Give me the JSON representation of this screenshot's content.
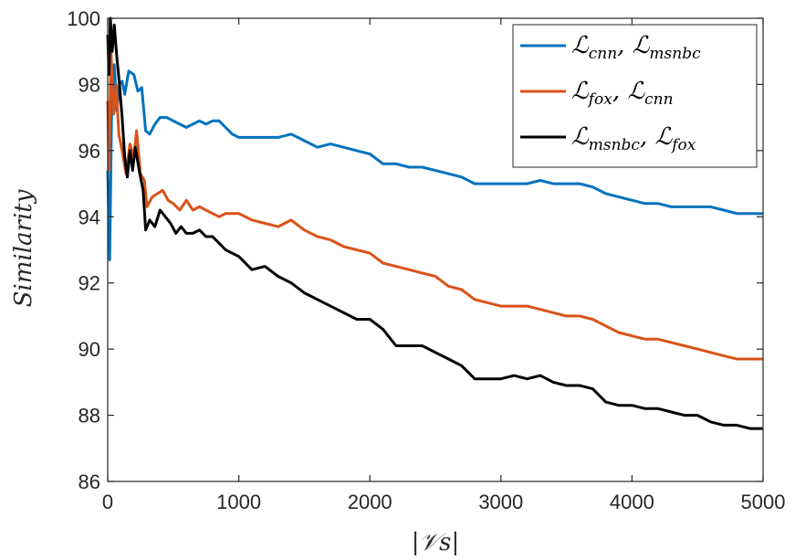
{
  "chart_data": {
    "type": "line",
    "title": "",
    "xlabel": "|𝒱s|",
    "ylabel": "Similarity",
    "xlim": [
      0,
      5000
    ],
    "ylim": [
      86,
      100
    ],
    "xticks": [
      "0",
      "1000",
      "2000",
      "3000",
      "4000",
      "5000"
    ],
    "yticks": [
      "86",
      "88",
      "90",
      "92",
      "94",
      "96",
      "98",
      "100"
    ],
    "grid": false,
    "legend_position": "top-right",
    "series": [
      {
        "name": "ℒcnn, ℒmsnbc",
        "legend": {
          "main1": "ℒ",
          "sub1": "cnn",
          "main2": "ℒ",
          "sub2": "msnbc"
        },
        "color": "#0072BD",
        "points": [
          [
            0,
            95.4
          ],
          [
            15,
            92.7
          ],
          [
            30,
            97.2
          ],
          [
            50,
            98.6
          ],
          [
            70,
            97.2
          ],
          [
            90,
            98.0
          ],
          [
            110,
            98.1
          ],
          [
            130,
            97.7
          ],
          [
            160,
            98.4
          ],
          [
            200,
            98.3
          ],
          [
            230,
            97.8
          ],
          [
            260,
            97.9
          ],
          [
            290,
            96.6
          ],
          [
            320,
            96.5
          ],
          [
            360,
            96.8
          ],
          [
            400,
            97.0
          ],
          [
            450,
            97.0
          ],
          [
            500,
            96.9
          ],
          [
            550,
            96.8
          ],
          [
            600,
            96.7
          ],
          [
            650,
            96.8
          ],
          [
            700,
            96.9
          ],
          [
            750,
            96.8
          ],
          [
            800,
            96.9
          ],
          [
            850,
            96.9
          ],
          [
            900,
            96.7
          ],
          [
            950,
            96.5
          ],
          [
            1000,
            96.4
          ],
          [
            1100,
            96.4
          ],
          [
            1200,
            96.4
          ],
          [
            1300,
            96.4
          ],
          [
            1400,
            96.5
          ],
          [
            1500,
            96.3
          ],
          [
            1600,
            96.1
          ],
          [
            1700,
            96.2
          ],
          [
            1800,
            96.1
          ],
          [
            1900,
            96.0
          ],
          [
            2000,
            95.9
          ],
          [
            2100,
            95.6
          ],
          [
            2200,
            95.6
          ],
          [
            2300,
            95.5
          ],
          [
            2400,
            95.5
          ],
          [
            2500,
            95.4
          ],
          [
            2600,
            95.3
          ],
          [
            2700,
            95.2
          ],
          [
            2800,
            95.0
          ],
          [
            2900,
            95.0
          ],
          [
            3000,
            95.0
          ],
          [
            3100,
            95.0
          ],
          [
            3200,
            95.0
          ],
          [
            3300,
            95.1
          ],
          [
            3400,
            95.0
          ],
          [
            3500,
            95.0
          ],
          [
            3600,
            95.0
          ],
          [
            3700,
            94.9
          ],
          [
            3800,
            94.7
          ],
          [
            3900,
            94.6
          ],
          [
            4000,
            94.5
          ],
          [
            4100,
            94.4
          ],
          [
            4200,
            94.4
          ],
          [
            4300,
            94.3
          ],
          [
            4400,
            94.3
          ],
          [
            4500,
            94.3
          ],
          [
            4600,
            94.3
          ],
          [
            4700,
            94.2
          ],
          [
            4800,
            94.1
          ],
          [
            4900,
            94.1
          ],
          [
            5000,
            94.1
          ]
        ]
      },
      {
        "name": "ℒfox, ℒcnn",
        "legend": {
          "main1": "ℒ",
          "sub1": "fox",
          "main2": "ℒ",
          "sub2": "cnn"
        },
        "color": "#D95319",
        "points": [
          [
            0,
            97.5
          ],
          [
            10,
            95.4
          ],
          [
            25,
            99.0
          ],
          [
            45,
            97.1
          ],
          [
            65,
            98.0
          ],
          [
            85,
            96.5
          ],
          [
            110,
            96.0
          ],
          [
            140,
            95.3
          ],
          [
            170,
            96.2
          ],
          [
            200,
            95.8
          ],
          [
            220,
            96.6
          ],
          [
            250,
            95.3
          ],
          [
            280,
            95.1
          ],
          [
            300,
            94.3
          ],
          [
            340,
            94.6
          ],
          [
            380,
            94.7
          ],
          [
            420,
            94.8
          ],
          [
            460,
            94.5
          ],
          [
            500,
            94.4
          ],
          [
            550,
            94.2
          ],
          [
            600,
            94.5
          ],
          [
            650,
            94.2
          ],
          [
            700,
            94.3
          ],
          [
            750,
            94.2
          ],
          [
            800,
            94.1
          ],
          [
            850,
            94.0
          ],
          [
            900,
            94.1
          ],
          [
            1000,
            94.1
          ],
          [
            1100,
            93.9
          ],
          [
            1200,
            93.8
          ],
          [
            1300,
            93.7
          ],
          [
            1400,
            93.9
          ],
          [
            1500,
            93.6
          ],
          [
            1600,
            93.4
          ],
          [
            1700,
            93.3
          ],
          [
            1800,
            93.1
          ],
          [
            1900,
            93.0
          ],
          [
            2000,
            92.9
          ],
          [
            2100,
            92.6
          ],
          [
            2200,
            92.5
          ],
          [
            2300,
            92.4
          ],
          [
            2400,
            92.3
          ],
          [
            2500,
            92.2
          ],
          [
            2600,
            91.9
          ],
          [
            2700,
            91.8
          ],
          [
            2800,
            91.5
          ],
          [
            2900,
            91.4
          ],
          [
            3000,
            91.3
          ],
          [
            3100,
            91.3
          ],
          [
            3200,
            91.3
          ],
          [
            3300,
            91.2
          ],
          [
            3400,
            91.1
          ],
          [
            3500,
            91.0
          ],
          [
            3600,
            91.0
          ],
          [
            3700,
            90.9
          ],
          [
            3800,
            90.7
          ],
          [
            3900,
            90.5
          ],
          [
            4000,
            90.4
          ],
          [
            4100,
            90.3
          ],
          [
            4200,
            90.3
          ],
          [
            4300,
            90.2
          ],
          [
            4400,
            90.1
          ],
          [
            4500,
            90.0
          ],
          [
            4600,
            89.9
          ],
          [
            4700,
            89.8
          ],
          [
            4800,
            89.7
          ],
          [
            4900,
            89.7
          ],
          [
            5000,
            89.7
          ]
        ]
      },
      {
        "name": "ℒmsnbc, ℒfox",
        "legend": {
          "main1": "ℒ",
          "sub1": "msnbc",
          "main2": "ℒ",
          "sub2": "fox"
        },
        "color": "#000000",
        "points": [
          [
            0,
            99.5
          ],
          [
            10,
            98.3
          ],
          [
            20,
            100.0
          ],
          [
            35,
            99.0
          ],
          [
            50,
            99.8
          ],
          [
            70,
            98.8
          ],
          [
            90,
            98.0
          ],
          [
            110,
            97.0
          ],
          [
            130,
            95.8
          ],
          [
            150,
            95.2
          ],
          [
            170,
            96.0
          ],
          [
            190,
            95.4
          ],
          [
            210,
            96.1
          ],
          [
            240,
            95.4
          ],
          [
            270,
            94.8
          ],
          [
            290,
            93.6
          ],
          [
            320,
            93.9
          ],
          [
            360,
            93.7
          ],
          [
            400,
            94.2
          ],
          [
            440,
            94.0
          ],
          [
            480,
            93.8
          ],
          [
            520,
            93.5
          ],
          [
            560,
            93.7
          ],
          [
            600,
            93.5
          ],
          [
            650,
            93.5
          ],
          [
            700,
            93.6
          ],
          [
            750,
            93.4
          ],
          [
            800,
            93.4
          ],
          [
            850,
            93.2
          ],
          [
            900,
            93.0
          ],
          [
            1000,
            92.8
          ],
          [
            1100,
            92.4
          ],
          [
            1200,
            92.5
          ],
          [
            1300,
            92.2
          ],
          [
            1400,
            92.0
          ],
          [
            1500,
            91.7
          ],
          [
            1600,
            91.5
          ],
          [
            1700,
            91.3
          ],
          [
            1800,
            91.1
          ],
          [
            1900,
            90.9
          ],
          [
            2000,
            90.9
          ],
          [
            2100,
            90.6
          ],
          [
            2200,
            90.1
          ],
          [
            2300,
            90.1
          ],
          [
            2400,
            90.1
          ],
          [
            2500,
            89.9
          ],
          [
            2600,
            89.7
          ],
          [
            2700,
            89.5
          ],
          [
            2800,
            89.1
          ],
          [
            2900,
            89.1
          ],
          [
            3000,
            89.1
          ],
          [
            3100,
            89.2
          ],
          [
            3200,
            89.1
          ],
          [
            3300,
            89.2
          ],
          [
            3400,
            89.0
          ],
          [
            3500,
            88.9
          ],
          [
            3600,
            88.9
          ],
          [
            3700,
            88.8
          ],
          [
            3800,
            88.4
          ],
          [
            3900,
            88.3
          ],
          [
            4000,
            88.3
          ],
          [
            4100,
            88.2
          ],
          [
            4200,
            88.2
          ],
          [
            4300,
            88.1
          ],
          [
            4400,
            88.0
          ],
          [
            4500,
            88.0
          ],
          [
            4600,
            87.8
          ],
          [
            4700,
            87.7
          ],
          [
            4800,
            87.7
          ],
          [
            4900,
            87.6
          ],
          [
            5000,
            87.6
          ]
        ]
      }
    ]
  }
}
